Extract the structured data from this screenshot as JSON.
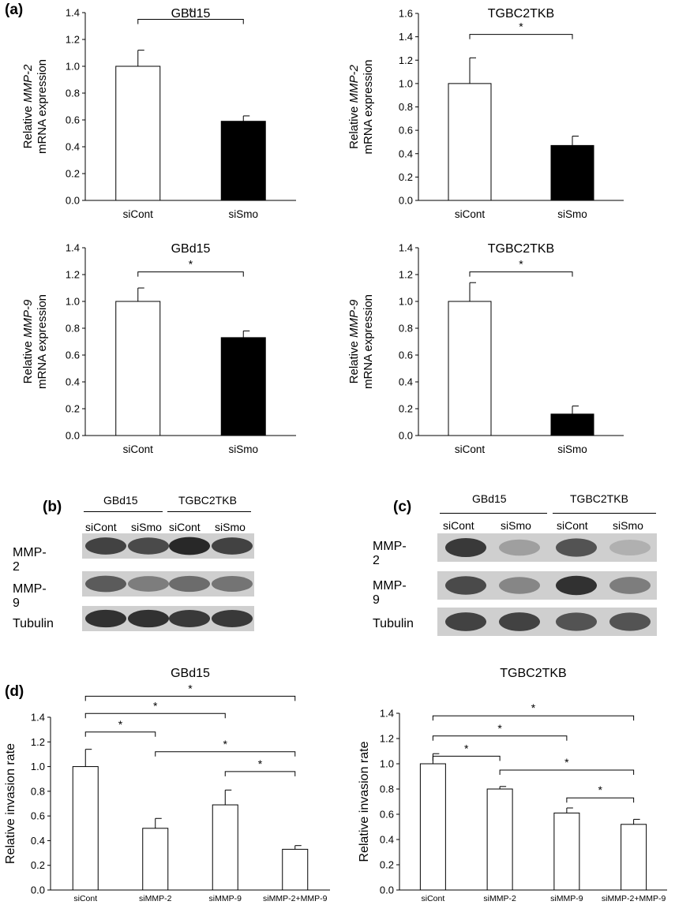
{
  "panels": {
    "a": "(a)",
    "b": "(b)",
    "c": "(c)",
    "d": "(d)"
  },
  "chart_data": [
    {
      "id": "a1",
      "type": "bar",
      "title": "GBd15",
      "ylabel_prefix": "Relative ",
      "ylabel_italic": "MMP-2",
      "ylabel_line2": "mRNA expression",
      "categories": [
        "siCont",
        "siSmo"
      ],
      "values": [
        1.0,
        0.59
      ],
      "errors": [
        0.12,
        0.04
      ],
      "fills": [
        "#ffffff",
        "#000000"
      ],
      "ylim": [
        0,
        1.4
      ],
      "yticks": [
        "0.0",
        "0.2",
        "0.4",
        "0.6",
        "0.8",
        "1.0",
        "1.2",
        "1.4"
      ],
      "significance": [
        {
          "from": 0,
          "to": 1,
          "level": 1.35,
          "label": "*"
        }
      ]
    },
    {
      "id": "a2",
      "type": "bar",
      "title": "TGBC2TKB",
      "ylabel_prefix": "Relative ",
      "ylabel_italic": "MMP-2",
      "ylabel_line2": "mRNA expression",
      "categories": [
        "siCont",
        "siSmo"
      ],
      "values": [
        1.0,
        0.47
      ],
      "errors": [
        0.22,
        0.08
      ],
      "fills": [
        "#ffffff",
        "#000000"
      ],
      "ylim": [
        0,
        1.6
      ],
      "yticks": [
        "0.0",
        "0.2",
        "0.4",
        "0.6",
        "0.8",
        "1.0",
        "1.2",
        "1.4",
        "1.6"
      ],
      "significance": [
        {
          "from": 0,
          "to": 1,
          "level": 1.42,
          "label": "*"
        }
      ]
    },
    {
      "id": "a3",
      "type": "bar",
      "title": "GBd15",
      "ylabel_prefix": "Relative ",
      "ylabel_italic": "MMP-9",
      "ylabel_line2": "mRNA expression",
      "categories": [
        "siCont",
        "siSmo"
      ],
      "values": [
        1.0,
        0.73
      ],
      "errors": [
        0.1,
        0.05
      ],
      "fills": [
        "#ffffff",
        "#000000"
      ],
      "ylim": [
        0,
        1.4
      ],
      "yticks": [
        "0.0",
        "0.2",
        "0.4",
        "0.6",
        "0.8",
        "1.0",
        "1.2",
        "1.4"
      ],
      "significance": [
        {
          "from": 0,
          "to": 1,
          "level": 1.22,
          "label": "*"
        }
      ]
    },
    {
      "id": "a4",
      "type": "bar",
      "title": "TGBC2TKB",
      "ylabel_prefix": "Relative ",
      "ylabel_italic": "MMP-9",
      "ylabel_line2": "mRNA expression",
      "categories": [
        "siCont",
        "siSmo"
      ],
      "values": [
        1.0,
        0.16
      ],
      "errors": [
        0.14,
        0.06
      ],
      "fills": [
        "#ffffff",
        "#000000"
      ],
      "ylim": [
        0,
        1.4
      ],
      "yticks": [
        "0.0",
        "0.2",
        "0.4",
        "0.6",
        "0.8",
        "1.0",
        "1.2",
        "1.4"
      ],
      "significance": [
        {
          "from": 0,
          "to": 1,
          "level": 1.22,
          "label": "*"
        }
      ]
    },
    {
      "id": "d1",
      "type": "bar",
      "title": "GBd15",
      "ylabel": "Relative invasion rate",
      "categories": [
        "siCont",
        "siMMP-2",
        "siMMP-9",
        "siMMP-2+MMP-9"
      ],
      "values": [
        1.0,
        0.5,
        0.69,
        0.33
      ],
      "errors": [
        0.14,
        0.08,
        0.12,
        0.03
      ],
      "fills": [
        "#ffffff",
        "#ffffff",
        "#ffffff",
        "#ffffff"
      ],
      "ylim": [
        0,
        1.4
      ],
      "yticks": [
        "0.0",
        "0.2",
        "0.4",
        "0.6",
        "0.8",
        "1.0",
        "1.2",
        "1.4"
      ],
      "significance": [
        {
          "from": 0,
          "to": 3,
          "level": 1.57,
          "label": "*"
        },
        {
          "from": 0,
          "to": 2,
          "level": 1.43,
          "label": "*"
        },
        {
          "from": 0,
          "to": 1,
          "level": 1.28,
          "label": "*"
        },
        {
          "from": 1,
          "to": 3,
          "level": 1.12,
          "label": "*"
        },
        {
          "from": 2,
          "to": 3,
          "level": 0.96,
          "label": "*"
        }
      ]
    },
    {
      "id": "d2",
      "type": "bar",
      "title": "TGBC2TKB",
      "ylabel": "Relative invasion rate",
      "categories": [
        "siCont",
        "siMMP-2",
        "siMMP-9",
        "siMMP-2+MMP-9"
      ],
      "values": [
        1.0,
        0.8,
        0.61,
        0.52
      ],
      "errors": [
        0.08,
        0.02,
        0.04,
        0.04
      ],
      "fills": [
        "#ffffff",
        "#ffffff",
        "#ffffff",
        "#ffffff"
      ],
      "ylim": [
        0,
        1.4
      ],
      "yticks": [
        "0.0",
        "0.2",
        "0.4",
        "0.6",
        "0.8",
        "1.0",
        "1.2",
        "1.4"
      ],
      "significance": [
        {
          "from": 0,
          "to": 3,
          "level": 1.38,
          "label": "*"
        },
        {
          "from": 0,
          "to": 2,
          "level": 1.22,
          "label": "*"
        },
        {
          "from": 0,
          "to": 1,
          "level": 1.06,
          "label": "*"
        },
        {
          "from": 1,
          "to": 3,
          "level": 0.95,
          "label": "*"
        },
        {
          "from": 2,
          "to": 3,
          "level": 0.73,
          "label": "*"
        }
      ]
    }
  ],
  "blots": {
    "b": {
      "groups": [
        "GBd15",
        "TGBC2TKB"
      ],
      "lanes": [
        "siCont",
        "siSmo",
        "siCont",
        "siSmo"
      ],
      "rows": [
        "MMP-2",
        "MMP-9",
        "Tubulin"
      ]
    },
    "c": {
      "groups": [
        "GBd15",
        "TGBC2TKB"
      ],
      "lanes": [
        "siCont",
        "siSmo",
        "siCont",
        "siSmo"
      ],
      "rows": [
        "MMP-2",
        "MMP-9",
        "Tubulin"
      ]
    }
  }
}
